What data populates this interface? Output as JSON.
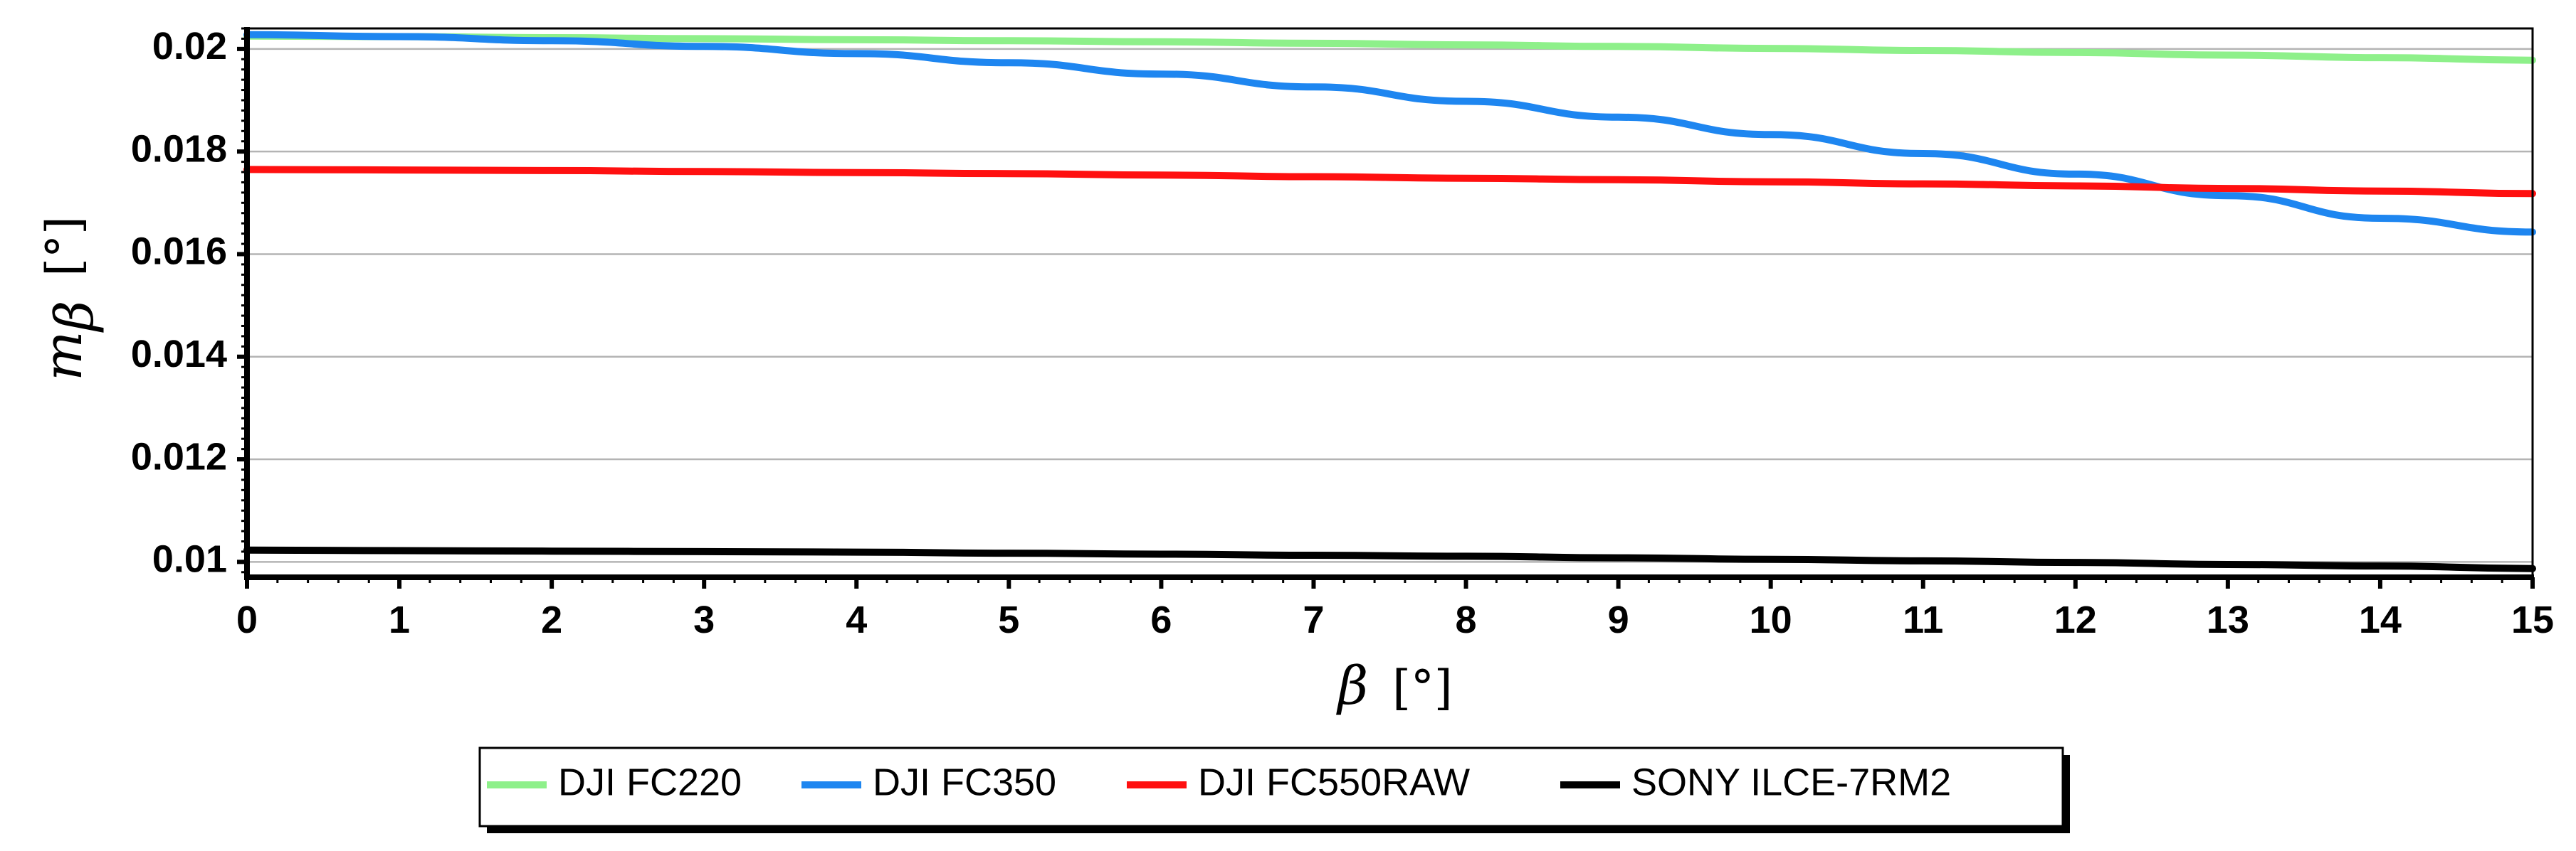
{
  "chart_data": {
    "type": "line",
    "title": "",
    "xlabel": "β",
    "xlabel_unit": "[°]",
    "ylabel": "m",
    "ylabel_sub": "β",
    "ylabel_unit": "[°]",
    "xlim": [
      0,
      15
    ],
    "ylim": [
      0.0097,
      0.0204
    ],
    "x_ticks": [
      0,
      1,
      2,
      3,
      4,
      5,
      6,
      7,
      8,
      9,
      10,
      11,
      12,
      13,
      14,
      15
    ],
    "x_tick_labels": [
      "0",
      "1",
      "2",
      "3",
      "4",
      "5",
      "6",
      "7",
      "8",
      "9",
      "10",
      "11",
      "12",
      "13",
      "14",
      "15"
    ],
    "y_ticks": [
      0.01,
      0.012,
      0.014,
      0.016,
      0.018,
      0.02
    ],
    "y_tick_labels": [
      "0.01",
      "0.012",
      "0.014",
      "0.016",
      "0.018",
      "0.02"
    ],
    "grid": "horizontal",
    "legend_position": "bottom",
    "x": [
      0,
      1,
      2,
      3,
      4,
      5,
      6,
      7,
      8,
      9,
      10,
      11,
      12,
      13,
      14,
      15
    ],
    "series": [
      {
        "name": "DJI FC220",
        "color": "#8ef08a",
        "values": [
          0.02025,
          0.02024,
          0.02022,
          0.0202,
          0.02018,
          0.02016,
          0.02014,
          0.02011,
          0.02008,
          0.02005,
          0.02001,
          0.01997,
          0.01993,
          0.01988,
          0.01983,
          0.01978
        ]
      },
      {
        "name": "DJI FC350",
        "color": "#1e86f0",
        "values": [
          0.02028,
          0.02024,
          0.02016,
          0.02005,
          0.01991,
          0.01973,
          0.01951,
          0.01926,
          0.01898,
          0.01867,
          0.01833,
          0.01796,
          0.01756,
          0.01714,
          0.0167,
          0.01643
        ]
      },
      {
        "name": "DJI FC550RAW",
        "color": "#ff1010",
        "values": [
          0.01765,
          0.01764,
          0.01763,
          0.01761,
          0.01759,
          0.01757,
          0.01754,
          0.01751,
          0.01748,
          0.01745,
          0.01741,
          0.01737,
          0.01733,
          0.01728,
          0.01723,
          0.01718
        ]
      },
      {
        "name": "SONY ILCE-7RM2",
        "color": "#000000",
        "values": [
          0.01023,
          0.01022,
          0.01021,
          0.0102,
          0.01019,
          0.01017,
          0.01015,
          0.01013,
          0.01011,
          0.01008,
          0.01005,
          0.01002,
          0.00999,
          0.00995,
          0.00992,
          0.00987
        ]
      }
    ]
  }
}
